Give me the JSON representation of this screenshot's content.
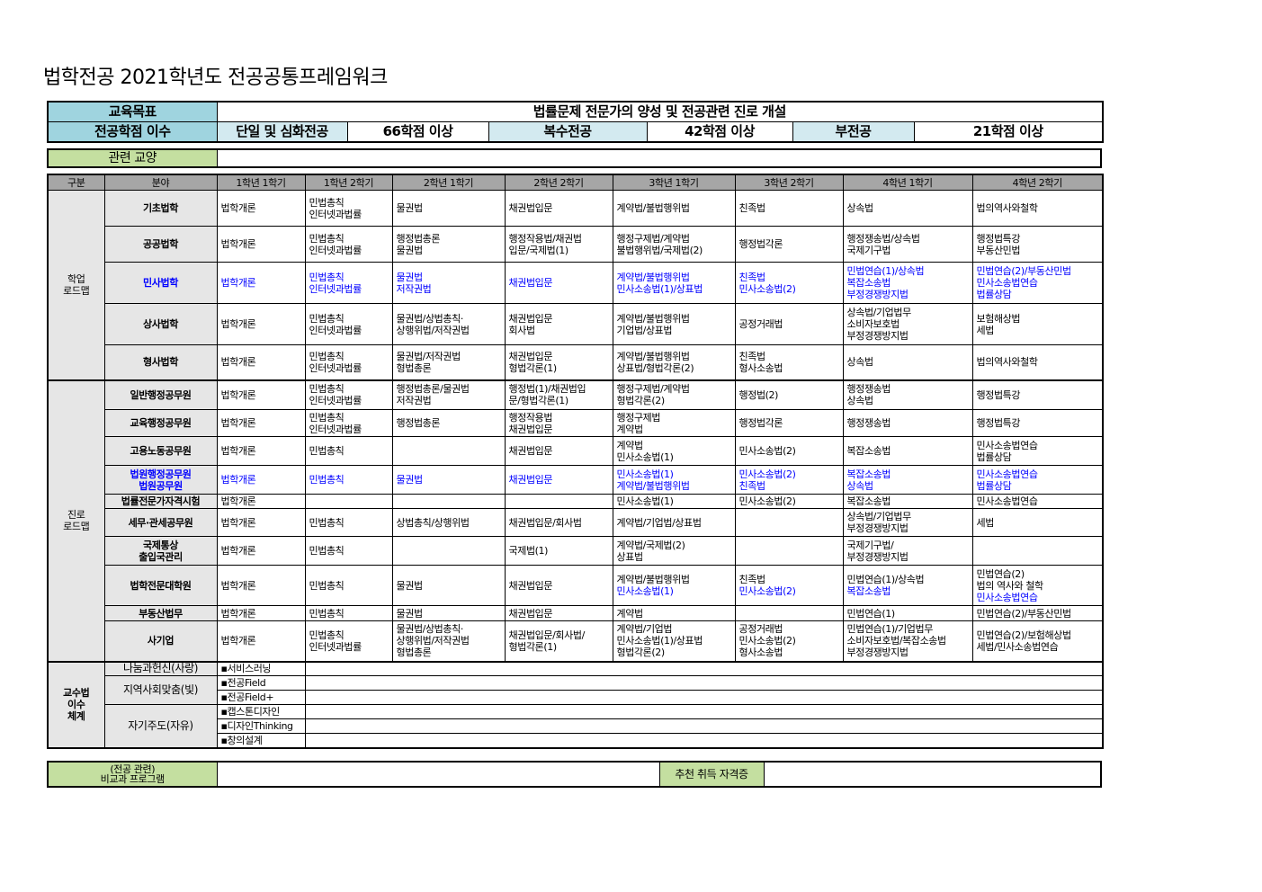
{
  "title": "법학전공 2021학년도 전공공통프레임워크",
  "top": {
    "goal_label": "교육목표",
    "goal_text": "법률문제 전문가의 양성 및 전공관련 진로 개설",
    "credit_label": "전공학점 이수",
    "single_label": "단일 및 심화전공",
    "single_value": "66학점 이상",
    "double_label": "복수전공",
    "double_value": "42학점 이상",
    "minor_label": "부전공",
    "minor_value": "21학점 이상"
  },
  "related_liberal": {
    "label": "관련 교양",
    "value": ""
  },
  "headers": [
    "구분",
    "분야",
    "1학년 1학기",
    "1학년 2학기",
    "2학년 1학기",
    "2학년 2학기",
    "3학년 1학기",
    "3학년 2학기",
    "4학년 1학기",
    "4학년 2학기"
  ],
  "groups": [
    {
      "label": "학업\n로드맵",
      "rows": [
        {
          "field": [
            "기초법학"
          ],
          "cells": [
            [
              "법학개론"
            ],
            [
              "민법총칙",
              "인터넷과법률"
            ],
            [
              "물권법"
            ],
            [
              "채권법입문"
            ],
            [
              "계약법/불법행위법"
            ],
            [
              "친족법"
            ],
            [
              "상속법"
            ],
            [
              "법의역사와철학"
            ]
          ]
        },
        {
          "field": [
            "공공법학"
          ],
          "cells": [
            [
              "법학개론"
            ],
            [
              "민법총칙",
              "인터넷과법률"
            ],
            [
              "행정법총론",
              "물권법"
            ],
            [
              "행정작용법/채권법",
              "입문/국제법(1)"
            ],
            [
              "행정구제법/계약법",
              "불법행위법/국제법(2)"
            ],
            [
              "행정법각론"
            ],
            [
              "행정쟁송법/상속법",
              "국제기구법"
            ],
            [
              "행정법특강",
              "부동산민법"
            ]
          ]
        },
        {
          "field": [
            "민사법학"
          ],
          "blue": true,
          "cells": [
            [
              "법학개론"
            ],
            [
              "민법총칙",
              "인터넷과법률"
            ],
            [
              "물권법",
              "저작권법"
            ],
            [
              "채권법입문"
            ],
            [
              "계약법/불법행위법",
              "민사소송법(1)/상표법"
            ],
            [
              "친족법",
              "민사소송법(2)"
            ],
            [
              "민법연습(1)/상속법",
              "복잡소송법",
              "부정경쟁방지법"
            ],
            [
              "민법연습(2)/부동산민법",
              "민사소송법연습",
              "법률상담"
            ]
          ]
        },
        {
          "field": [
            "상사법학"
          ],
          "cells": [
            [
              "법학개론"
            ],
            [
              "민법총칙",
              "인터넷과법률"
            ],
            [
              "물권법/상법총칙·",
              "상행위법/저작권법"
            ],
            [
              "채권법입문",
              "회사법"
            ],
            [
              "계약법/불법행위법",
              "기업법/상표법"
            ],
            [
              "공정거래법"
            ],
            [
              "상속법/기업법무",
              "소비자보호법",
              "부정경쟁방지법"
            ],
            [
              "보험해상법",
              "세법"
            ]
          ]
        },
        {
          "field": [
            "형사법학"
          ],
          "cells": [
            [
              "법학개론"
            ],
            [
              "민법총칙",
              "인터넷과법률"
            ],
            [
              "물권법/저작권법",
              "형법총론"
            ],
            [
              "채권법입문",
              "형법각론(1)"
            ],
            [
              "계약법/불법행위법",
              "상표법/형법각론(2)"
            ],
            [
              "친족법",
              "형사소송법"
            ],
            [
              "상속법"
            ],
            [
              "법의역사와철학"
            ]
          ]
        }
      ]
    },
    {
      "label": "진로\n로드맵",
      "rows": [
        {
          "field": [
            "일반행정공무원"
          ],
          "cells": [
            [
              "법학개론"
            ],
            [
              "민법총칙",
              "인터넷과법률"
            ],
            [
              "행정법총론/물권법",
              "저작권법"
            ],
            [
              "행정법(1)/채권법입",
              "문/형법각론(1)"
            ],
            [
              "행정구제법/계약법",
              "형법각론(2)"
            ],
            [
              "행정법(2)"
            ],
            [
              "행정쟁송법",
              "상속법"
            ],
            [
              "행정법특강"
            ]
          ]
        },
        {
          "field": [
            "교육행정공무원"
          ],
          "cells": [
            [
              "법학개론"
            ],
            [
              "민법총칙",
              "인터넷과법률"
            ],
            [
              "행정법총론"
            ],
            [
              "행정작용법",
              "채권법입문"
            ],
            [
              "행정구제법",
              "계약법"
            ],
            [
              "행정법각론"
            ],
            [
              "행정쟁송법"
            ],
            [
              "행정법특강"
            ]
          ]
        },
        {
          "field": [
            "고용노동공무원"
          ],
          "cells": [
            [
              "법학개론"
            ],
            [
              "민법총칙"
            ],
            [],
            [
              "채권법입문"
            ],
            [
              "계약법",
              "민사소송법(1)"
            ],
            [
              "민사소송법(2)"
            ],
            [
              "복잡소송법"
            ],
            [
              "민사소송법연습",
              "법률상담"
            ]
          ]
        },
        {
          "field": [
            "법원행정공무원",
            "법원공무원"
          ],
          "blue": true,
          "cells": [
            [
              "법학개론"
            ],
            [
              "민법총칙"
            ],
            [
              "물권법"
            ],
            [
              "채권법입문"
            ],
            [
              "민사소송법(1)",
              "계약법/불법행위법"
            ],
            [
              "민사소송법(2)",
              "친족법"
            ],
            [
              "복잡소송법",
              "상속법"
            ],
            [
              "민사소송법연습",
              "법률상담"
            ]
          ]
        },
        {
          "field": [
            "법률전문가자격시험"
          ],
          "cells": [
            [
              "법학개론"
            ],
            [],
            [],
            [],
            [
              "민사소송법(1)"
            ],
            [
              "민사소송법(2)"
            ],
            [
              "복잡소송법"
            ],
            [
              "민사소송법연습"
            ]
          ]
        },
        {
          "field": [
            "세무·관세공무원"
          ],
          "cells": [
            [
              "법학개론"
            ],
            [
              "민법총칙"
            ],
            [
              "상법총칙/상행위법"
            ],
            [
              "채권법입문/회사법"
            ],
            [
              "계약법/기업법/상표법"
            ],
            [],
            [
              "상속법/기업법무",
              "부정경쟁방지법"
            ],
            [
              "세법"
            ]
          ]
        },
        {
          "field": [
            "국제통상",
            "출입국관리"
          ],
          "cells": [
            [
              "법학개론"
            ],
            [
              "민법총칙"
            ],
            [],
            [
              "국제법(1)"
            ],
            [
              "계약법/국제법(2)",
              "상표법"
            ],
            [],
            [
              "국제기구법/",
              "부정경쟁방지법"
            ],
            []
          ]
        },
        {
          "field": [
            "법학전문대학원"
          ],
          "cells": [
            [
              "법학개론"
            ],
            [
              "민법총칙"
            ],
            [
              "물권법"
            ],
            [
              "채권법입문"
            ],
            [
              "계약법/불법행위법",
              {
                "text": "민사소송법(1)",
                "blue": true
              }
            ],
            [
              "친족법",
              {
                "text": "민사소송법(2)",
                "blue": true
              }
            ],
            [
              "민법연습(1)/상속법",
              {
                "text": "복잡소송법",
                "blue": true
              }
            ],
            [
              "민법연습(2)",
              "법의 역사와 철학",
              {
                "text": "민사소송법연습",
                "blue": true
              }
            ]
          ]
        },
        {
          "field": [
            "부동산법무"
          ],
          "cells": [
            [
              "법학개론"
            ],
            [
              "민법총칙"
            ],
            [
              "물권법"
            ],
            [
              "채권법입문"
            ],
            [
              "계약법"
            ],
            [],
            [
              "민법연습(1)"
            ],
            [
              "민법연습(2)/부동산민법"
            ]
          ]
        },
        {
          "field": [
            "사기업"
          ],
          "cells": [
            [
              "법학개론"
            ],
            [
              "민법총칙",
              "인터넷과법률"
            ],
            [
              "물권법/상법총칙·",
              "상행위법/저작권법",
              "형법총론"
            ],
            [
              "채권법입문/회사법/",
              "형법각론(1)"
            ],
            [
              "계약법/기업법",
              "민사소송법(1)/상표법",
              "형법각론(2)"
            ],
            [
              "공정거래법",
              "민사소송법(2)",
              "형사소송법"
            ],
            [
              "민법연습(1)/기업법무",
              "소비자보호법/복잡소송법",
              "부정경쟁방지법"
            ],
            [
              "민법연습(2)/보험해상법",
              "세법/민사소송법연습"
            ]
          ]
        }
      ]
    }
  ],
  "teaching": {
    "label": "교수법\n이수\n체계",
    "categories": [
      {
        "name": "나눔과헌신(사랑)",
        "items": [
          "▪서비스러닝"
        ]
      },
      {
        "name": "지역사회맞춤(빛)",
        "items": [
          "▪전공Field",
          "▪전공Field+"
        ]
      },
      {
        "name": "자기주도(자유)",
        "items": [
          "▪캡스톤디자인",
          "▪디자인Thinking",
          "▪창의설계"
        ]
      }
    ]
  },
  "bottom": {
    "program_label_1": "(전공 관련)",
    "program_label_2": "비교과 프로그램",
    "program_value": "",
    "cert_label": "추천 취득 자격증",
    "cert_value": ""
  },
  "colors": {
    "teal": "#9fd4df",
    "light_blue": "#d3eaf0",
    "green": "#c4dfa0",
    "header_gray": "#a6a6a6",
    "label_gray": "#e6e6e6",
    "link_blue": "#0000ff"
  }
}
